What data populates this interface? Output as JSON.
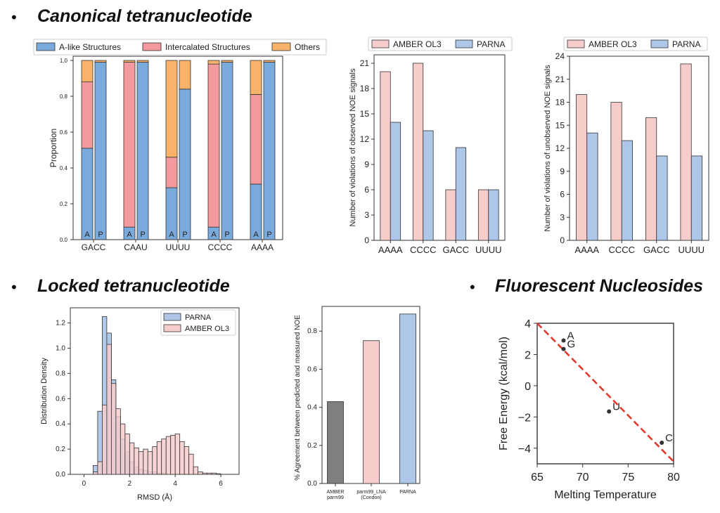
{
  "headings": {
    "canonical": "Canonical tetranucleotide",
    "locked": "Locked tetranucleotide",
    "fluorescent": "Fluorescent Nucleosides"
  },
  "bullet_char": "•",
  "colors": {
    "a_like": "#7aa9dc",
    "intercalated": "#f29a9e",
    "others": "#f8b26a",
    "amber": "#f7cdcc",
    "parna": "#aec7e8",
    "gray_bar": "#7f7f7f",
    "fit_line": "#e03a2f",
    "point": "#333333"
  },
  "chart_data": [
    {
      "id": "proportion",
      "type": "bar",
      "stacked": true,
      "categories": [
        "GACC",
        "CAAU",
        "UUUU",
        "CCCC",
        "AAAA"
      ],
      "sub_labels": [
        "A",
        "P"
      ],
      "ylabel": "Proportion",
      "ylim": [
        0,
        1.0
      ],
      "yticks": [
        "0.0",
        "0.2",
        "0.4",
        "0.6",
        "0.8",
        "1.0"
      ],
      "legend": [
        "A-like Structures",
        "Intercalated Structures",
        "Others"
      ],
      "legend_position": "top",
      "series": [
        {
          "name": "A-like Structures",
          "A": [
            0.51,
            0.07,
            0.29,
            0.07,
            0.31
          ],
          "P": [
            0.99,
            0.99,
            0.84,
            0.99,
            0.99
          ]
        },
        {
          "name": "Intercalated Structures",
          "A": [
            0.37,
            0.92,
            0.17,
            0.91,
            0.5
          ],
          "P": [
            0.0,
            0.0,
            0.0,
            0.0,
            0.0
          ]
        },
        {
          "name": "Others",
          "A": [
            0.12,
            0.01,
            0.54,
            0.02,
            0.19
          ],
          "P": [
            0.01,
            0.01,
            0.16,
            0.01,
            0.01
          ]
        }
      ]
    },
    {
      "id": "observed",
      "type": "bar",
      "categories": [
        "AAAA",
        "CCCC",
        "GACC",
        "UUUU"
      ],
      "ylabel": "Number of violations of observed NOE signals",
      "ylim": [
        0,
        22
      ],
      "yticks": [
        "0",
        "3",
        "6",
        "9",
        "12",
        "15",
        "18",
        "21"
      ],
      "legend_position": "top",
      "series": [
        {
          "name": "AMBER OL3",
          "values": [
            20,
            21,
            6,
            6
          ]
        },
        {
          "name": "PARNA",
          "values": [
            14,
            13,
            11,
            6
          ]
        }
      ]
    },
    {
      "id": "unobserved",
      "type": "bar",
      "categories": [
        "AAAA",
        "CCCC",
        "GACC",
        "UUUU"
      ],
      "ylabel": "Number of violations of unobserved NOE signals",
      "ylim": [
        0,
        24
      ],
      "yticks": [
        "0",
        "3",
        "6",
        "9",
        "12",
        "15",
        "18",
        "21",
        "24"
      ],
      "legend_position": "top",
      "series": [
        {
          "name": "AMBER OL3",
          "values": [
            19,
            18,
            16,
            23
          ]
        },
        {
          "name": "PARNA",
          "values": [
            14,
            13,
            11,
            11
          ]
        }
      ]
    },
    {
      "id": "rmsd",
      "type": "bar",
      "subtype": "histogram",
      "xlabel": "RMSD (Å)",
      "ylabel": "Distribution Density",
      "xlim": [
        -0.6,
        6.8
      ],
      "ylim": [
        0,
        1.32
      ],
      "xticks": [
        "0",
        "2",
        "4",
        "6"
      ],
      "yticks": [
        "0.0",
        "0.2",
        "0.4",
        "0.6",
        "0.8",
        "1.0",
        "1.2"
      ],
      "legend_position": "top-right",
      "bin_start": 0.4,
      "bin_width": 0.2,
      "series": [
        {
          "name": "AMBER OL3",
          "values": [
            0.02,
            0.1,
            0.55,
            1.03,
            0.72,
            0.52,
            0.4,
            0.32,
            0.25,
            0.21,
            0.18,
            0.2,
            0.18,
            0.22,
            0.26,
            0.28,
            0.3,
            0.31,
            0.32,
            0.26,
            0.22,
            0.16,
            0.06,
            0.02,
            0.01,
            0.01,
            0.01,
            0.005
          ]
        },
        {
          "name": "PARNA",
          "values": [
            0.07,
            0.5,
            1.25,
            1.12,
            0.75,
            0.46,
            0.28,
            0.18,
            0.1,
            0.06,
            0.04,
            0.03,
            0.02,
            0.02,
            0.01,
            0.01
          ]
        }
      ]
    },
    {
      "id": "agreement",
      "type": "bar",
      "categories": [
        "AMBER parm99",
        "parm99_LNA (Condon)",
        "PARNA"
      ],
      "category_lines": [
        [
          "AMBER",
          "parm99"
        ],
        [
          "parm99_LNA",
          "(Condon)"
        ],
        [
          "PARNA"
        ]
      ],
      "values": [
        0.43,
        0.75,
        0.89
      ],
      "ylabel": "% Agreement between predicted and measured NOE",
      "ylim": [
        0,
        0.93
      ],
      "yticks": [
        "0.0",
        "0.2",
        "0.4",
        "0.6",
        "0.8"
      ]
    },
    {
      "id": "fluorescent",
      "type": "scatter",
      "xlabel": "Melting Temperature",
      "ylabel": "Free Energy (kcal/mol)",
      "xlim": [
        65,
        80
      ],
      "ylim": [
        -5,
        4
      ],
      "xticks": [
        "65",
        "70",
        "75",
        "80"
      ],
      "yticks": [
        "−4",
        "−2",
        "0",
        "2",
        "4"
      ],
      "points": [
        {
          "label": "A",
          "x": 67.9,
          "y": 2.9
        },
        {
          "label": "G",
          "x": 67.9,
          "y": 2.35
        },
        {
          "label": "U",
          "x": 72.9,
          "y": -1.65
        },
        {
          "label": "C",
          "x": 78.7,
          "y": -3.65
        }
      ],
      "fit_line": {
        "x": [
          65,
          80
        ],
        "y": [
          4.0,
          -4.85
        ]
      }
    }
  ]
}
